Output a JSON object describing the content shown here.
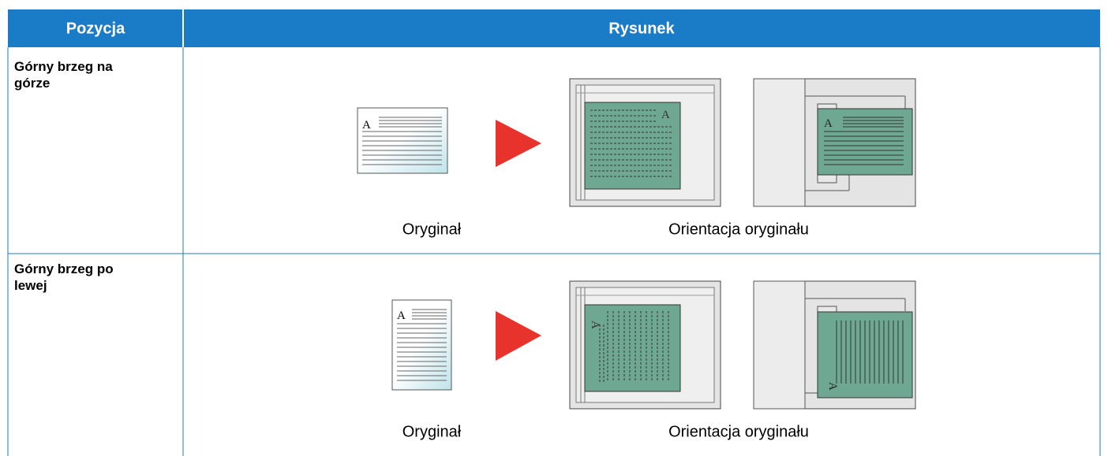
{
  "table": {
    "header": [
      "Pozycja",
      "Rysunek"
    ],
    "rows": [
      {
        "label": "Górny brzeg na górze",
        "captions": [
          "Oryginał",
          "Orientacja oryginału"
        ],
        "icon_letter": "A"
      },
      {
        "label": "Górny brzeg po lewej",
        "captions": [
          "Oryginał",
          "Orientacja oryginału"
        ],
        "icon_letter": "A"
      }
    ]
  }
}
